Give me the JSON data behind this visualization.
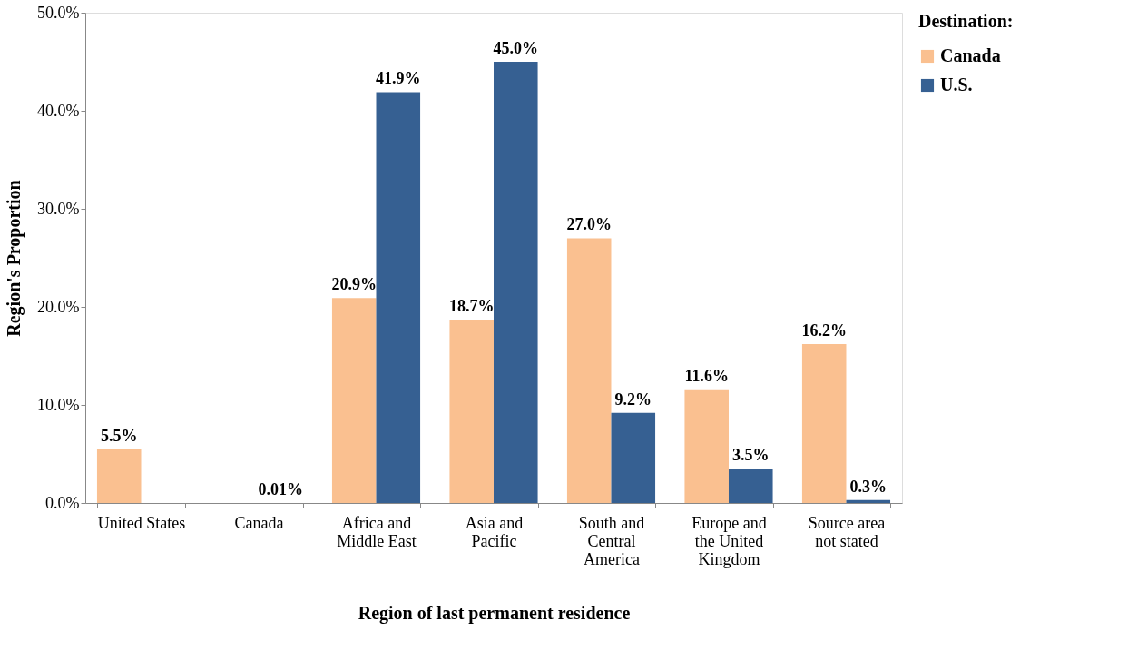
{
  "chart_data": {
    "type": "bar",
    "xlabel": "Region of last permanent residence",
    "ylabel": "Region's Proportion",
    "legend_title": "Destination:",
    "categories": [
      "United States",
      "Canada",
      "Africa and Middle East",
      "Asia and Pacific",
      "South and Central America",
      "Europe and the United Kingdom",
      "Source area not stated"
    ],
    "series": [
      {
        "name": "Canada",
        "color": "#fac090",
        "values": [
          5.5,
          null,
          20.9,
          18.7,
          27.0,
          11.6,
          16.2
        ],
        "value_labels": [
          "5.5%",
          null,
          "20.9%",
          "18.7%",
          "27.0%",
          "11.6%",
          "16.2%"
        ]
      },
      {
        "name": "U.S.",
        "color": "#366092",
        "values": [
          null,
          0.01,
          41.9,
          45.0,
          9.2,
          3.5,
          0.3
        ],
        "value_labels": [
          null,
          "0.01%",
          "41.9%",
          "45.0%",
          "9.2%",
          "3.5%",
          "0.3%"
        ]
      }
    ],
    "ylim": [
      0,
      50
    ],
    "yticks": [
      {
        "value": 0,
        "label": "0.0%"
      },
      {
        "value": 10,
        "label": "10.0%"
      },
      {
        "value": 20,
        "label": "20.0%"
      },
      {
        "value": 30,
        "label": "30.0%"
      },
      {
        "value": 40,
        "label": "40.0%"
      },
      {
        "value": 50,
        "label": "50.0%"
      }
    ],
    "grid": false,
    "legend": "right"
  }
}
